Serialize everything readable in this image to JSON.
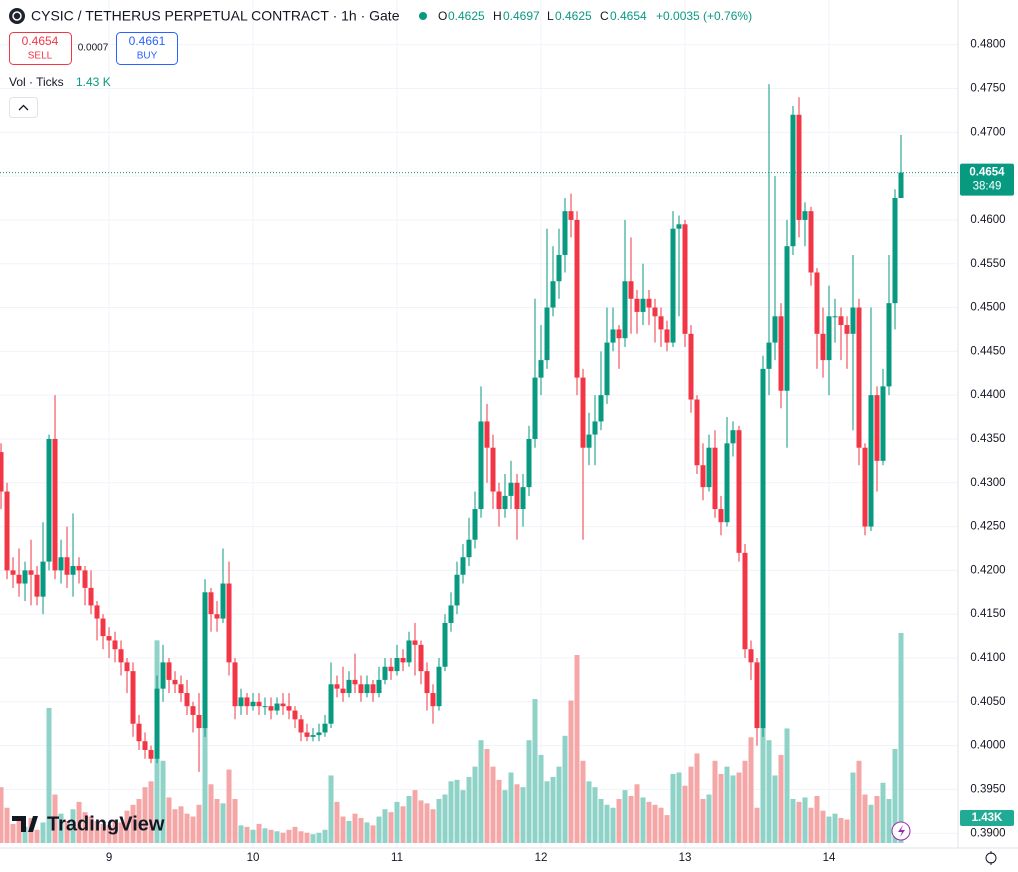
{
  "header": {
    "symbol": "CYSIC / TETHERUS PERPETUAL CONTRACT · 1h · Gate",
    "o_label": "O",
    "o": "0.4625",
    "h_label": "H",
    "h": "0.4697",
    "l_label": "L",
    "l": "0.4625",
    "c_label": "C",
    "c": "0.4654",
    "change": "+0.0035 (+0.76%)"
  },
  "trade": {
    "sell_price": "0.4654",
    "sell": "SELL",
    "spread": "0.0007",
    "buy_price": "0.4661",
    "buy": "BUY"
  },
  "volume_legend": {
    "label": "Vol · Ticks",
    "value": "1.43 K"
  },
  "logo": "TradingView",
  "price_tag": {
    "price": "0.4654",
    "countdown": "38:49"
  },
  "volume_tag": "1.43K",
  "chart_data": {
    "type": "candlestick",
    "up_color": "#089981",
    "down_color": "#f23645",
    "up_volume_color": "#8fd2c7",
    "down_volume_color": "#f5a6a6",
    "grid": true,
    "xlim": [
      -0.17,
      159.5
    ],
    "xticks": [
      {
        "value": 18,
        "label": "9"
      },
      {
        "value": 42,
        "label": "10"
      },
      {
        "value": 66,
        "label": "11"
      },
      {
        "value": 90,
        "label": "12"
      },
      {
        "value": 114,
        "label": "13"
      },
      {
        "value": 138,
        "label": "14"
      }
    ],
    "ylim": [
      0.3874,
      0.4851
    ],
    "yticks": [
      {
        "value": 0.39,
        "label": "0.3900"
      },
      {
        "value": 0.395,
        "label": "0.3950"
      },
      {
        "value": 0.4,
        "label": "0.4000"
      },
      {
        "value": 0.405,
        "label": "0.4050"
      },
      {
        "value": 0.41,
        "label": "0.4100"
      },
      {
        "value": 0.415,
        "label": "0.4150"
      },
      {
        "value": 0.42,
        "label": "0.4200"
      },
      {
        "value": 0.425,
        "label": "0.4250"
      },
      {
        "value": 0.43,
        "label": "0.4300"
      },
      {
        "value": 0.435,
        "label": "0.4350"
      },
      {
        "value": 0.44,
        "label": "0.4400"
      },
      {
        "value": 0.445,
        "label": "0.4450"
      },
      {
        "value": 0.45,
        "label": "0.4500"
      },
      {
        "value": 0.455,
        "label": "0.4550"
      },
      {
        "value": 0.46,
        "label": "0.4600"
      },
      {
        "value": 0.465,
        "label": "0.4650"
      },
      {
        "value": 0.47,
        "label": "0.4700"
      },
      {
        "value": 0.475,
        "label": "0.4750"
      },
      {
        "value": 0.48,
        "label": "0.4800"
      }
    ],
    "last_price": 0.4654,
    "volume_max": 1430,
    "open": [
      0.4335,
      0.429,
      0.42,
      0.4195,
      0.4185,
      0.42,
      0.4195,
      0.417,
      0.421,
      0.435,
      0.42,
      0.4215,
      0.4195,
      0.4205,
      0.42,
      0.418,
      0.416,
      0.4145,
      0.4125,
      0.412,
      0.411,
      0.4095,
      0.4085,
      0.4025,
      0.4005,
      0.3995,
      0.3985,
      0.4065,
      0.4095,
      0.4075,
      0.407,
      0.406,
      0.4045,
      0.4035,
      0.402,
      0.4175,
      0.415,
      0.4145,
      0.4185,
      0.4095,
      0.4045,
      0.4055,
      0.4045,
      0.405,
      0.4045,
      0.4045,
      0.404,
      0.4048,
      0.4045,
      0.404,
      0.403,
      0.4015,
      0.401,
      0.4012,
      0.4015,
      0.4025,
      0.407,
      0.4065,
      0.406,
      0.4075,
      0.407,
      0.406,
      0.407,
      0.406,
      0.4075,
      0.409,
      0.4085,
      0.41,
      0.4095,
      0.412,
      0.4115,
      0.4085,
      0.406,
      0.4045,
      0.409,
      0.414,
      0.416,
      0.4195,
      0.4215,
      0.4235,
      0.427,
      0.437,
      0.434,
      0.429,
      0.427,
      0.4285,
      0.43,
      0.427,
      0.4295,
      0.435,
      0.442,
      0.444,
      0.45,
      0.453,
      0.456,
      0.461,
      0.46,
      0.442,
      0.434,
      0.4355,
      0.437,
      0.44,
      0.446,
      0.4475,
      0.4465,
      0.453,
      0.451,
      0.4495,
      0.451,
      0.45,
      0.449,
      0.4475,
      0.446,
      0.459,
      0.4595,
      0.447,
      0.4395,
      0.432,
      0.4295,
      0.434,
      0.427,
      0.4255,
      0.4345,
      0.436,
      0.422,
      0.411,
      0.4095,
      0.402,
      0.443,
      0.446,
      0.449,
      0.4405,
      0.457,
      0.472,
      0.46,
      0.461,
      0.454,
      0.447,
      0.444,
      0.449,
      0.449,
      0.448,
      0.447,
      0.45,
      0.434,
      0.425,
      0.44,
      0.4325,
      0.441,
      0.4505,
      0.4625
    ],
    "close": [
      0.429,
      0.42,
      0.4195,
      0.4185,
      0.42,
      0.4195,
      0.417,
      0.421,
      0.435,
      0.42,
      0.4215,
      0.4195,
      0.4205,
      0.42,
      0.418,
      0.416,
      0.4145,
      0.4125,
      0.412,
      0.411,
      0.4095,
      0.4085,
      0.4025,
      0.4005,
      0.3995,
      0.3985,
      0.4065,
      0.4095,
      0.4075,
      0.407,
      0.406,
      0.4045,
      0.4035,
      0.402,
      0.4175,
      0.415,
      0.4145,
      0.4185,
      0.4095,
      0.4045,
      0.4055,
      0.4045,
      0.405,
      0.4045,
      0.4045,
      0.404,
      0.4048,
      0.4045,
      0.404,
      0.403,
      0.4015,
      0.401,
      0.4012,
      0.4015,
      0.4025,
      0.407,
      0.4065,
      0.406,
      0.4075,
      0.407,
      0.406,
      0.407,
      0.406,
      0.4075,
      0.409,
      0.4085,
      0.41,
      0.4095,
      0.412,
      0.4115,
      0.4085,
      0.406,
      0.4045,
      0.409,
      0.414,
      0.416,
      0.4195,
      0.4215,
      0.4235,
      0.427,
      0.437,
      0.434,
      0.429,
      0.427,
      0.4285,
      0.43,
      0.427,
      0.4295,
      0.435,
      0.442,
      0.444,
      0.45,
      0.453,
      0.456,
      0.461,
      0.46,
      0.442,
      0.434,
      0.4355,
      0.437,
      0.44,
      0.446,
      0.4475,
      0.4465,
      0.453,
      0.451,
      0.4495,
      0.451,
      0.45,
      0.449,
      0.4475,
      0.446,
      0.459,
      0.4595,
      0.447,
      0.4395,
      0.432,
      0.4295,
      0.434,
      0.427,
      0.4255,
      0.4345,
      0.436,
      0.422,
      0.411,
      0.4095,
      0.402,
      0.443,
      0.446,
      0.449,
      0.4405,
      0.457,
      0.472,
      0.46,
      0.461,
      0.454,
      0.447,
      0.444,
      0.449,
      0.449,
      0.448,
      0.447,
      0.45,
      0.434,
      0.425,
      0.44,
      0.4325,
      0.441,
      0.4505,
      0.4625,
      0.4654
    ],
    "high": [
      0.4345,
      0.43,
      0.4215,
      0.4225,
      0.421,
      0.4235,
      0.4205,
      0.4255,
      0.4355,
      0.44,
      0.4235,
      0.425,
      0.4265,
      0.4215,
      0.4205,
      0.42,
      0.4165,
      0.415,
      0.4135,
      0.413,
      0.412,
      0.41,
      0.4095,
      0.4035,
      0.4015,
      0.4,
      0.408,
      0.4115,
      0.41,
      0.4085,
      0.408,
      0.4075,
      0.405,
      0.406,
      0.419,
      0.418,
      0.4165,
      0.4225,
      0.421,
      0.41,
      0.4065,
      0.406,
      0.406,
      0.406,
      0.4055,
      0.4055,
      0.4055,
      0.406,
      0.406,
      0.4045,
      0.4035,
      0.4025,
      0.402,
      0.4025,
      0.4035,
      0.4095,
      0.408,
      0.409,
      0.4085,
      0.4105,
      0.408,
      0.408,
      0.4075,
      0.409,
      0.41,
      0.41,
      0.4115,
      0.411,
      0.413,
      0.414,
      0.412,
      0.4095,
      0.407,
      0.41,
      0.415,
      0.4175,
      0.421,
      0.423,
      0.426,
      0.429,
      0.441,
      0.439,
      0.4355,
      0.43,
      0.431,
      0.4325,
      0.431,
      0.431,
      0.4365,
      0.451,
      0.448,
      0.459,
      0.457,
      0.459,
      0.4625,
      0.463,
      0.461,
      0.443,
      0.438,
      0.44,
      0.445,
      0.45,
      0.45,
      0.448,
      0.46,
      0.458,
      0.452,
      0.455,
      0.452,
      0.451,
      0.45,
      0.4485,
      0.461,
      0.4605,
      0.46,
      0.448,
      0.44,
      0.4345,
      0.4355,
      0.436,
      0.4285,
      0.4375,
      0.437,
      0.4365,
      0.423,
      0.412,
      0.41,
      0.4445,
      0.4755,
      0.465,
      0.4505,
      0.46,
      0.473,
      0.474,
      0.462,
      0.4615,
      0.4545,
      0.45,
      0.4525,
      0.451,
      0.45,
      0.449,
      0.456,
      0.451,
      0.4345,
      0.45,
      0.441,
      0.443,
      0.456,
      0.4635,
      0.4697
    ],
    "low": [
      0.427,
      0.419,
      0.418,
      0.417,
      0.4165,
      0.416,
      0.416,
      0.415,
      0.42,
      0.419,
      0.4185,
      0.418,
      0.417,
      0.4185,
      0.416,
      0.415,
      0.412,
      0.411,
      0.41,
      0.4095,
      0.408,
      0.406,
      0.401,
      0.3995,
      0.3985,
      0.398,
      0.398,
      0.405,
      0.406,
      0.406,
      0.405,
      0.4035,
      0.4015,
      0.397,
      0.401,
      0.413,
      0.413,
      0.414,
      0.408,
      0.403,
      0.4035,
      0.4035,
      0.404,
      0.4035,
      0.4035,
      0.403,
      0.4035,
      0.4035,
      0.403,
      0.402,
      0.4005,
      0.4005,
      0.4005,
      0.4005,
      0.401,
      0.402,
      0.4055,
      0.405,
      0.4055,
      0.406,
      0.405,
      0.4055,
      0.405,
      0.4055,
      0.407,
      0.4075,
      0.408,
      0.4085,
      0.409,
      0.408,
      0.407,
      0.404,
      0.4025,
      0.404,
      0.4085,
      0.413,
      0.415,
      0.4185,
      0.4205,
      0.4225,
      0.426,
      0.43,
      0.427,
      0.425,
      0.426,
      0.427,
      0.4235,
      0.425,
      0.4285,
      0.434,
      0.44,
      0.443,
      0.449,
      0.451,
      0.454,
      0.458,
      0.44,
      0.4235,
      0.432,
      0.432,
      0.436,
      0.439,
      0.445,
      0.443,
      0.4455,
      0.447,
      0.447,
      0.448,
      0.448,
      0.446,
      0.4455,
      0.445,
      0.4455,
      0.449,
      0.4455,
      0.438,
      0.431,
      0.428,
      0.429,
      0.426,
      0.424,
      0.425,
      0.433,
      0.421,
      0.41,
      0.4075,
      0.4,
      0.401,
      0.44,
      0.444,
      0.4385,
      0.434,
      0.456,
      0.458,
      0.457,
      0.4525,
      0.443,
      0.442,
      0.44,
      0.446,
      0.444,
      0.443,
      0.436,
      0.432,
      0.424,
      0.4245,
      0.429,
      0.432,
      0.44,
      0.4475,
      0.4625
    ],
    "volume": [
      380,
      240,
      130,
      160,
      110,
      170,
      90,
      140,
      920,
      330,
      200,
      150,
      230,
      280,
      210,
      180,
      150,
      130,
      120,
      160,
      140,
      220,
      260,
      300,
      380,
      420,
      1380,
      560,
      310,
      230,
      250,
      200,
      180,
      260,
      820,
      400,
      300,
      270,
      500,
      300,
      120,
      110,
      90,
      130,
      100,
      90,
      80,
      70,
      90,
      110,
      80,
      70,
      60,
      70,
      90,
      460,
      280,
      180,
      150,
      200,
      170,
      140,
      120,
      180,
      230,
      210,
      280,
      250,
      320,
      360,
      290,
      270,
      230,
      300,
      330,
      420,
      430,
      360,
      450,
      520,
      700,
      640,
      520,
      430,
      360,
      480,
      400,
      380,
      700,
      980,
      600,
      420,
      450,
      520,
      730,
      970,
      1280,
      560,
      420,
      380,
      300,
      260,
      240,
      300,
      360,
      320,
      400,
      310,
      280,
      260,
      240,
      190,
      470,
      480,
      390,
      520,
      610,
      300,
      330,
      560,
      470,
      520,
      460,
      480,
      560,
      720,
      240,
      1430,
      700,
      460,
      600,
      780,
      300,
      280,
      310,
      240,
      320,
      220,
      180,
      200,
      170,
      160,
      480,
      560,
      330,
      260,
      320,
      410,
      300,
      640,
      1430
    ]
  }
}
